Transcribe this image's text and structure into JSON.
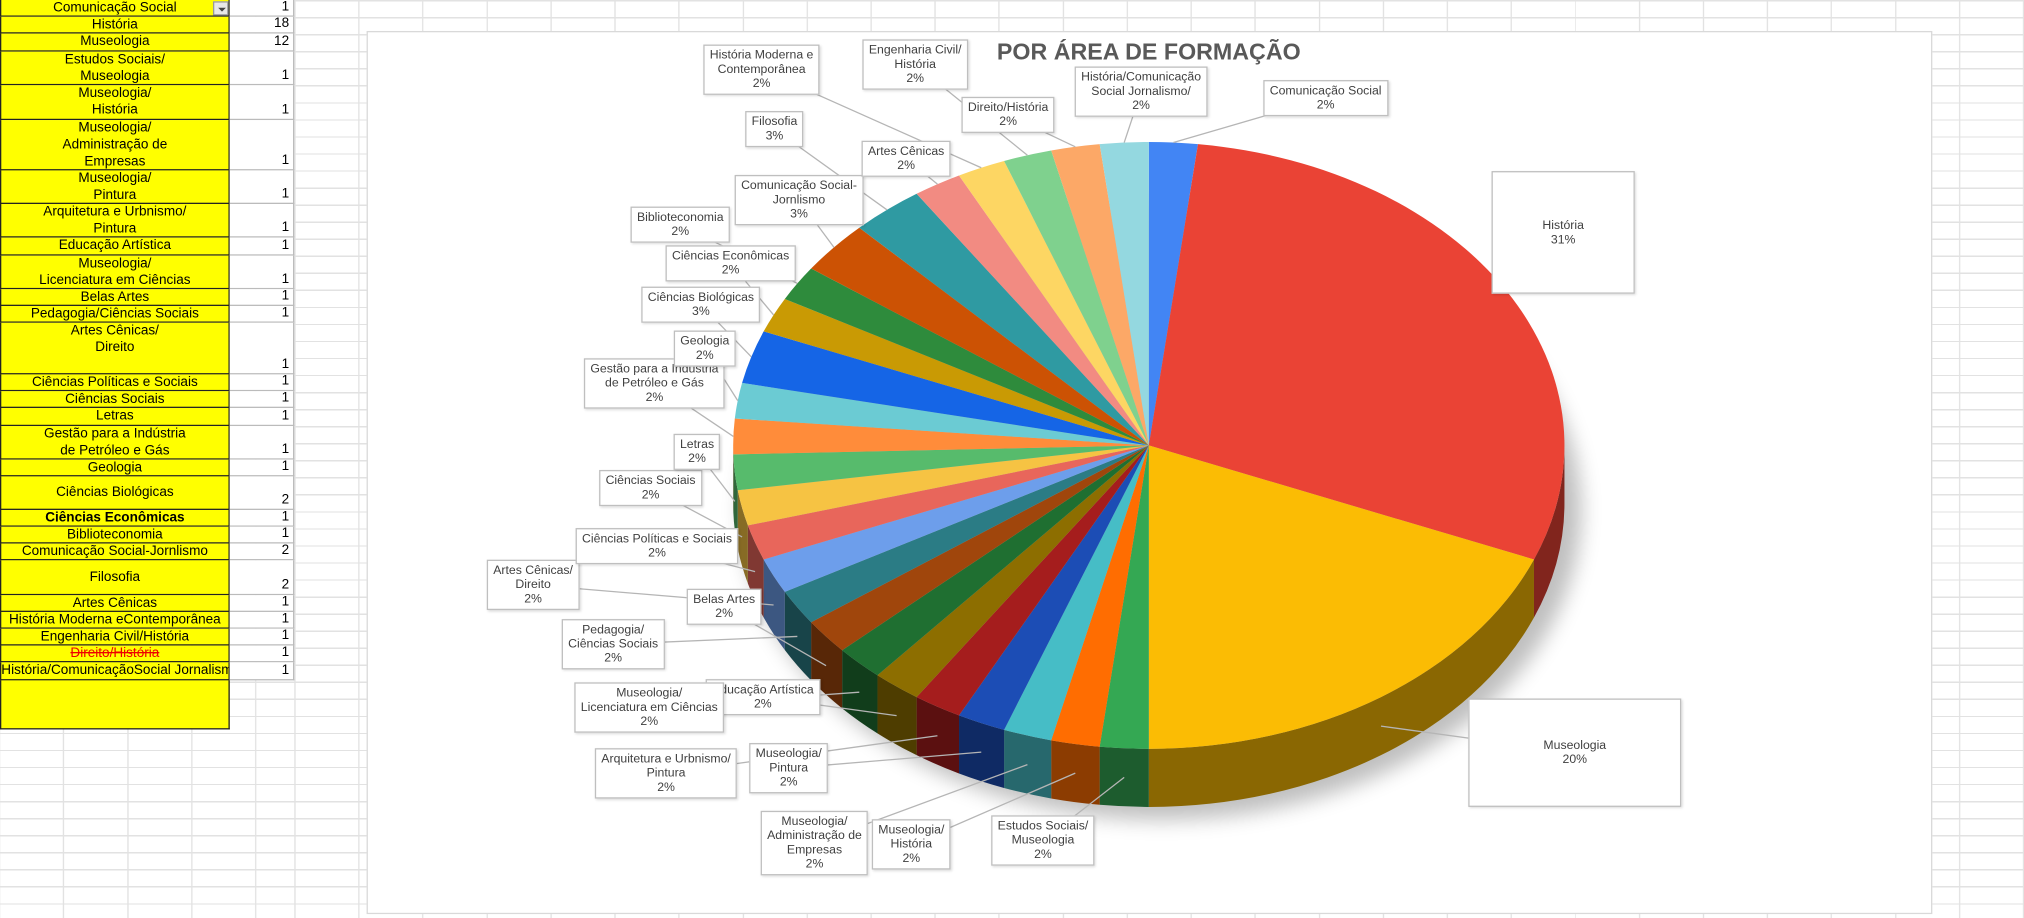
{
  "table": {
    "rows": [
      [
        "Comunicação Social",
        1
      ],
      [
        "História",
        18
      ],
      [
        "Museologia",
        12
      ],
      [
        "Estudos Sociais/\nMuseologia",
        1
      ],
      [
        "Museologia/\nHistória",
        1
      ],
      [
        "Museologia/\nAdministração de\nEmpresas",
        1
      ],
      [
        "Museologia/\nPintura",
        1
      ],
      [
        "Arquitetura e Urbnismo/\nPintura",
        1
      ],
      [
        "Educação Artística",
        1
      ],
      [
        "Museologia/\nLicenciatura em Ciências",
        1
      ],
      [
        "Belas Artes",
        1
      ],
      [
        "Pedagogia/Ciências Sociais",
        1
      ],
      [
        "Artes Cênicas/\nDireito",
        1
      ],
      [
        "Ciências Políticas e Sociais",
        1
      ],
      [
        "Ciências Sociais",
        1
      ],
      [
        "Letras",
        1
      ],
      [
        "Gestão para a Indústria\nde Petróleo e Gás",
        1
      ],
      [
        "Geologia",
        1
      ],
      [
        "Ciências Biológicas",
        2
      ],
      [
        "Ciências Econômicas",
        1
      ],
      [
        "Biblioteconomia",
        1
      ],
      [
        "Comunicação Social-Jornlismo",
        2
      ],
      [
        "Filosofia",
        2
      ],
      [
        "Artes Cênicas",
        1
      ],
      [
        "História Moderna eContemporânea",
        1
      ],
      [
        "Engenharia Civil/História",
        1
      ],
      [
        "Direito/História",
        1
      ],
      [
        "História/ComunicaçãoSocial Jornalismo",
        1
      ]
    ]
  },
  "chart_data": {
    "type": "pie",
    "title": "POR ÁREA DE FORMAÇÃO",
    "categories": [
      "Comunicação Social",
      "História",
      "Museologia",
      "Estudos  Sociais/\nMuseologia",
      "Museologia/\nHistória",
      "Museologia/\nAdministração de\nEmpresas",
      "Museologia/\nPintura",
      "Arquitetura e Urbnismo/\nPintura",
      "Educação Artística",
      "Museologia/\nLicenciatura em Ciências",
      "Belas Artes",
      "Pedagogia/\nCiências Sociais",
      "Artes Cênicas/\nDireito",
      "Ciências Políticas e Sociais",
      "Ciências Sociais",
      "Letras",
      "Gestão para a Indústria\nde Petróleo e Gás",
      "Geologia",
      "Ciências Biológicas",
      "Ciências Econômicas",
      "Biblioteconomia",
      "Comunicação Social-\nJornlismo",
      "Filosofia",
      "Artes Cênicas",
      "História Moderna e\nContemporânea",
      "Engenharia Civil/\nHistória",
      "Direito/História",
      "História/Comunicação\nSocial Jornalismo/"
    ],
    "values": [
      2,
      31,
      20,
      2,
      2,
      2,
      2,
      2,
      2,
      2,
      2,
      2,
      2,
      2,
      2,
      2,
      2,
      2,
      3,
      2,
      2,
      3,
      3,
      2,
      2,
      2,
      2,
      2
    ],
    "value_labels": [
      "2%",
      "31%",
      "20%",
      "2%",
      "2%",
      "2%",
      "2%",
      "2%",
      "2%",
      "2%",
      "2%",
      "2%",
      "2%",
      "2%",
      "2%",
      "2%",
      "2%",
      "2%",
      "3%",
      "2%",
      "2%",
      "3%",
      "3%",
      "2%",
      "2%",
      "2%",
      "2%",
      "2%"
    ],
    "colors": [
      "#4285f4",
      "#ea4335",
      "#fbbc04",
      "#34a853",
      "#ff6d01",
      "#46bdc6",
      "#1c4db5",
      "#a51d1d",
      "#8d6e00",
      "#1f6f31",
      "#a0460c",
      "#2b7c85",
      "#6d9eeb",
      "#e8665b",
      "#f6c343",
      "#57bb6c",
      "#ff8c3a",
      "#6bcbd3",
      "#1565e6",
      "#c99a04",
      "#2e8b3c",
      "#cc5204",
      "#2f9aa2",
      "#f28b82",
      "#fdd663",
      "#7fd18e",
      "#fca867",
      "#94d8e0"
    ]
  }
}
